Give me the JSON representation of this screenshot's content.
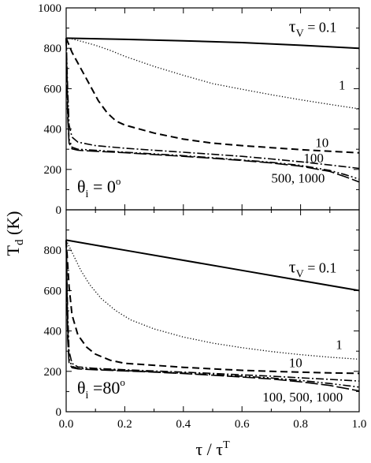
{
  "chart_data": [
    {
      "type": "line",
      "panel": "top",
      "angle_label": {
        "base": "θ",
        "sub": "i",
        "rest": " = 0",
        "sup": "o"
      },
      "xlim": [
        0,
        1
      ],
      "ylim": [
        0,
        1000
      ],
      "yticks": [
        "0",
        "200",
        "400",
        "600",
        "800",
        "1000"
      ],
      "xticks": [],
      "series": [
        {
          "style": "solid",
          "label": "0.1",
          "points": [
            [
              0,
              850
            ],
            [
              0.2,
              844
            ],
            [
              0.4,
              837
            ],
            [
              0.6,
              828
            ],
            [
              0.8,
              815
            ],
            [
              1.0,
              800
            ]
          ]
        },
        {
          "style": "dotted",
          "label": "1",
          "points": [
            [
              0,
              850
            ],
            [
              0.02,
              846
            ],
            [
              0.05,
              835
            ],
            [
              0.1,
              815
            ],
            [
              0.15,
              790
            ],
            [
              0.2,
              760
            ],
            [
              0.3,
              710
            ],
            [
              0.4,
              666
            ],
            [
              0.5,
              625
            ],
            [
              0.6,
              597
            ],
            [
              0.7,
              570
            ],
            [
              0.8,
              545
            ],
            [
              0.9,
              522
            ],
            [
              1.0,
              500
            ]
          ]
        },
        {
          "style": "dashed",
          "label": "10",
          "points": [
            [
              0,
              850
            ],
            [
              0.02,
              780
            ],
            [
              0.05,
              700
            ],
            [
              0.08,
              620
            ],
            [
              0.11,
              540
            ],
            [
              0.14,
              480
            ],
            [
              0.17,
              440
            ],
            [
              0.2,
              420
            ],
            [
              0.3,
              380
            ],
            [
              0.4,
              350
            ],
            [
              0.5,
              330
            ],
            [
              0.6,
              318
            ],
            [
              0.7,
              308
            ],
            [
              0.8,
              298
            ],
            [
              0.9,
              290
            ],
            [
              1.0,
              282
            ]
          ]
        },
        {
          "style": "dashdot",
          "label": "100",
          "points": [
            [
              0,
              850
            ],
            [
              0.005,
              600
            ],
            [
              0.01,
              420
            ],
            [
              0.02,
              360
            ],
            [
              0.04,
              335
            ],
            [
              0.1,
              318
            ],
            [
              0.2,
              305
            ],
            [
              0.3,
              295
            ],
            [
              0.4,
              285
            ],
            [
              0.5,
              275
            ],
            [
              0.6,
              265
            ],
            [
              0.7,
              252
            ],
            [
              0.8,
              238
            ],
            [
              0.9,
              222
            ],
            [
              1.0,
              205
            ]
          ]
        },
        {
          "style": "dashdotdot",
          "label": "500, 1000",
          "points": [
            [
              0,
              850
            ],
            [
              0.005,
              500
            ],
            [
              0.01,
              350
            ],
            [
              0.02,
              310
            ],
            [
              0.04,
              300
            ],
            [
              0.1,
              295
            ],
            [
              0.2,
              285
            ],
            [
              0.3,
              277
            ],
            [
              0.4,
              268
            ],
            [
              0.5,
              258
            ],
            [
              0.6,
              247
            ],
            [
              0.7,
              235
            ],
            [
              0.8,
              220
            ],
            [
              0.9,
              195
            ],
            [
              0.95,
              175
            ],
            [
              1.0,
              152
            ]
          ]
        },
        {
          "style": "longdash",
          "label": "",
          "points": [
            [
              0,
              850
            ],
            [
              0.005,
              460
            ],
            [
              0.01,
              330
            ],
            [
              0.02,
              302
            ],
            [
              0.04,
              295
            ],
            [
              0.1,
              290
            ],
            [
              0.2,
              283
            ],
            [
              0.3,
              274
            ],
            [
              0.4,
              265
            ],
            [
              0.5,
              255
            ],
            [
              0.6,
              244
            ],
            [
              0.7,
              232
            ],
            [
              0.8,
              216
            ],
            [
              0.9,
              190
            ],
            [
              0.95,
              165
            ],
            [
              1.0,
              138
            ]
          ]
        }
      ],
      "annotations": [
        {
          "text_base": "τ",
          "text_sub": "V",
          "text_rest": " = 0.1",
          "x": 0.76,
          "y": 880
        },
        {
          "text": "1",
          "x": 0.93,
          "y": 595
        },
        {
          "text": "10",
          "x": 0.85,
          "y": 310
        },
        {
          "text": "100",
          "x": 0.81,
          "y": 235
        },
        {
          "text": "500, 1000",
          "x": 0.7,
          "y": 135
        }
      ]
    },
    {
      "type": "line",
      "panel": "bottom",
      "angle_label": {
        "base": "θ",
        "sub": "i",
        "rest": " =80",
        "sup": "o"
      },
      "xlim": [
        0,
        1
      ],
      "ylim": [
        0,
        1000
      ],
      "yticks": [
        "0",
        "200",
        "400",
        "600",
        "800",
        "1000"
      ],
      "xticks": [
        "0.0",
        "0.2",
        "0.4",
        "0.6",
        "0.8",
        "1.0"
      ],
      "series": [
        {
          "style": "solid",
          "label": "0.1",
          "points": [
            [
              0,
              850
            ],
            [
              0.2,
              800
            ],
            [
              0.4,
              750
            ],
            [
              0.6,
              700
            ],
            [
              0.8,
              650
            ],
            [
              1.0,
              600
            ]
          ]
        },
        {
          "style": "dotted",
          "label": "1",
          "points": [
            [
              0,
              850
            ],
            [
              0.02,
              790
            ],
            [
              0.05,
              700
            ],
            [
              0.08,
              630
            ],
            [
              0.12,
              560
            ],
            [
              0.17,
              500
            ],
            [
              0.22,
              455
            ],
            [
              0.3,
              410
            ],
            [
              0.4,
              370
            ],
            [
              0.5,
              340
            ],
            [
              0.6,
              317
            ],
            [
              0.7,
              298
            ],
            [
              0.8,
              283
            ],
            [
              0.9,
              270
            ],
            [
              1.0,
              260
            ]
          ]
        },
        {
          "style": "dashed",
          "label": "10",
          "points": [
            [
              0,
              850
            ],
            [
              0.01,
              620
            ],
            [
              0.02,
              480
            ],
            [
              0.04,
              380
            ],
            [
              0.07,
              320
            ],
            [
              0.1,
              285
            ],
            [
              0.15,
              255
            ],
            [
              0.2,
              240
            ],
            [
              0.3,
              230
            ],
            [
              0.4,
              220
            ],
            [
              0.5,
              212
            ],
            [
              0.6,
              205
            ],
            [
              0.7,
              200
            ],
            [
              0.8,
              196
            ],
            [
              0.9,
              192
            ],
            [
              1.0,
              190
            ]
          ]
        },
        {
          "style": "dashdot",
          "label": "100",
          "points": [
            [
              0,
              850
            ],
            [
              0.005,
              500
            ],
            [
              0.01,
              300
            ],
            [
              0.02,
              240
            ],
            [
              0.04,
              222
            ],
            [
              0.1,
              215
            ],
            [
              0.2,
              208
            ],
            [
              0.3,
              202
            ],
            [
              0.4,
              196
            ],
            [
              0.5,
              190
            ],
            [
              0.6,
              183
            ],
            [
              0.7,
              176
            ],
            [
              0.8,
              168
            ],
            [
              0.9,
              160
            ],
            [
              1.0,
              152
            ]
          ]
        },
        {
          "style": "dashdotdot",
          "label": "500",
          "points": [
            [
              0,
              850
            ],
            [
              0.005,
              420
            ],
            [
              0.01,
              260
            ],
            [
              0.02,
              225
            ],
            [
              0.04,
              215
            ],
            [
              0.1,
              210
            ],
            [
              0.2,
              204
            ],
            [
              0.3,
              198
            ],
            [
              0.4,
              191
            ],
            [
              0.5,
              184
            ],
            [
              0.6,
              176
            ],
            [
              0.7,
              167
            ],
            [
              0.8,
              155
            ],
            [
              0.9,
              140
            ],
            [
              1.0,
              122
            ]
          ]
        },
        {
          "style": "longdash",
          "label": "1000",
          "points": [
            [
              0,
              850
            ],
            [
              0.005,
              360
            ],
            [
              0.01,
              240
            ],
            [
              0.02,
              218
            ],
            [
              0.04,
              212
            ],
            [
              0.1,
              208
            ],
            [
              0.2,
              202
            ],
            [
              0.3,
              196
            ],
            [
              0.4,
              189
            ],
            [
              0.5,
              181
            ],
            [
              0.6,
              172
            ],
            [
              0.7,
              162
            ],
            [
              0.8,
              148
            ],
            [
              0.9,
              130
            ],
            [
              1.0,
              103
            ]
          ]
        }
      ],
      "annotations": [
        {
          "text_base": "τ",
          "text_sub": "V",
          "text_rest": " = 0.1",
          "x": 0.76,
          "y": 690
        },
        {
          "text": "1",
          "x": 0.92,
          "y": 310
        },
        {
          "text": "10",
          "x": 0.76,
          "y": 220
        },
        {
          "text": "100, 500, 1000",
          "x": 0.67,
          "y": 50
        }
      ]
    }
  ],
  "axes": {
    "ylabel_base": "T",
    "ylabel_sub": "d",
    "ylabel_rest": " (K)",
    "xlabel_base": "τ / τ",
    "xlabel_sup": "T"
  }
}
